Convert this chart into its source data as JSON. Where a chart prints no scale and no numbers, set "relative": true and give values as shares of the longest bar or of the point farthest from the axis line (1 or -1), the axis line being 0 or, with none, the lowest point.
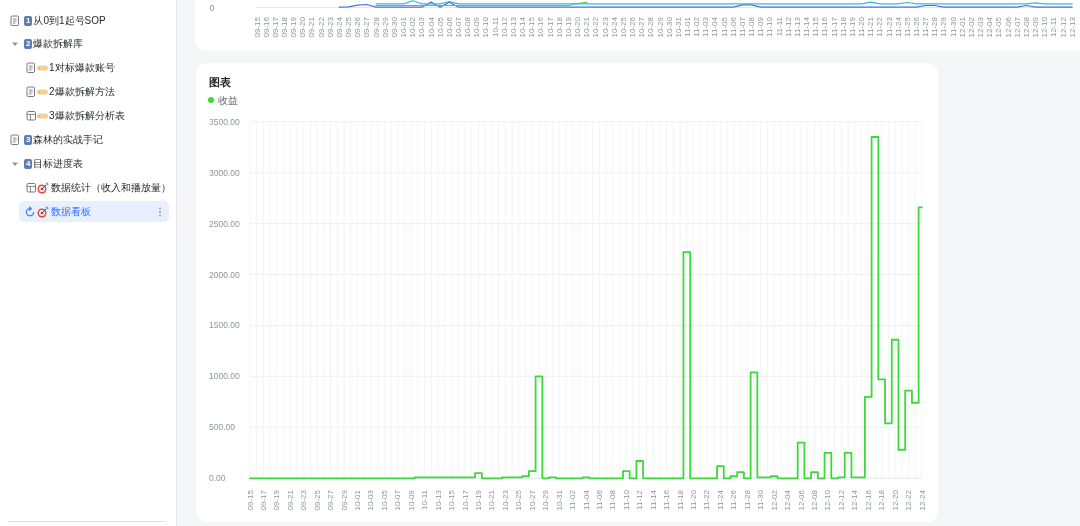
{
  "chart_data": [
    {
      "type": "other",
      "annotations": [
        "1从0到1起号SOP",
        "2爆款拆解库",
        "1对标爆款账号",
        "2爆款拆解方法",
        "3爆款拆解分析表",
        "3森林的实战手记",
        "4目标进度表",
        "数据统计（收入和播放量）",
        "数据看板"
      ]
    },
    {
      "type": "line",
      "relative": true,
      "annotations": [
        "0"
      ],
      "categories": [
        "09-15",
        "09-16",
        "09-17",
        "09-18",
        "09-19",
        "09-20",
        "09-21",
        "09-22",
        "09-23",
        "09-24",
        "09-25",
        "09-26",
        "09-27",
        "09-28",
        "09-29",
        "09-30",
        "10-01",
        "10-02",
        "10-03",
        "10-04",
        "10-05",
        "10-06",
        "10-07",
        "10-08",
        "10-09",
        "10-10",
        "10-11",
        "10-12",
        "10-13",
        "10-14",
        "10-15",
        "10-16",
        "10-17",
        "10-18",
        "10-19",
        "10-20",
        "10-21",
        "10-22",
        "10-23",
        "10-24",
        "10-25",
        "10-26",
        "10-27",
        "10-28",
        "10-29",
        "10-30",
        "10-31",
        "11-01",
        "11-02",
        "11-03",
        "11-04",
        "11-05",
        "11-06",
        "11-07",
        "11-08",
        "11-09",
        "11-10",
        "11-11",
        "11-12",
        "11-13",
        "11-14",
        "11-15",
        "11-16",
        "11-17",
        "11-18",
        "11-19",
        "11-20",
        "11-21",
        "11-22",
        "11-23",
        "11-24",
        "11-25",
        "11-26",
        "11-27",
        "11-28",
        "11-29",
        "11-30",
        "12-01",
        "12-02",
        "12-03",
        "12-04",
        "12-05",
        "12-06",
        "12-07",
        "12-08",
        "12-09",
        "12-10",
        "12-11",
        "12-12",
        "12-13"
      ],
      "series": [
        {
          "color": "#4a6cf7",
          "values": [
            null,
            null,
            null,
            null,
            null,
            null,
            null,
            null,
            null,
            0.05,
            0.1,
            0.35,
            0.45,
            0.05,
            0.05,
            0.05,
            0.05,
            0.05,
            0.05,
            0.8,
            0.05,
            0.8,
            0.05,
            0.05,
            0.05,
            0.05,
            0.05,
            0.05,
            0.05,
            0.05,
            0.05,
            0.05,
            0.05,
            0.05,
            0.05,
            0.05,
            0.05,
            0.05,
            0.05,
            0.05,
            0.05,
            0.05,
            0.05,
            0.05,
            0.05,
            0.05,
            0.05,
            0.05,
            0.05,
            0.05,
            0.05,
            0.05,
            0.05,
            0.4,
            0.4,
            0.05,
            0.05,
            0.05,
            0.05,
            0.05,
            0.05,
            0.05,
            0.05,
            0.05,
            0.05,
            0.05,
            0.05,
            0.05,
            0.05,
            0.05,
            0.05,
            0.05,
            0.05,
            0.3,
            0.3,
            0.05,
            0.05,
            0.05,
            0.05,
            0.05,
            0.05,
            0.05,
            0.05,
            0.05,
            0.3,
            0.05,
            0.05,
            0.05,
            0.05,
            0.05
          ]
        },
        {
          "color": "#62c73c",
          "values": [
            null,
            null,
            null,
            null,
            null,
            null,
            null,
            null,
            null,
            null,
            null,
            null,
            null,
            0.3,
            0.3,
            0.3,
            0.3,
            0.3,
            0.3,
            0.3,
            0.3,
            0.3,
            0.3,
            0.3,
            0.3,
            0.3,
            0.3,
            0.3,
            0.3,
            0.3,
            0.3,
            0.3,
            0.3,
            0.3,
            0.3,
            0.6,
            0.75,
            null,
            null,
            null,
            null,
            null,
            null,
            null,
            null,
            null,
            null,
            null,
            null,
            null,
            null,
            null,
            null,
            null,
            null,
            null,
            null,
            null,
            null,
            null,
            null,
            null,
            null,
            null,
            null,
            null,
            null,
            null,
            null,
            null,
            null,
            null,
            null,
            null,
            null,
            null,
            null,
            null,
            null,
            null,
            null,
            null,
            null,
            null,
            null,
            null,
            null,
            null,
            null,
            null
          ]
        },
        {
          "color": "#2bc3cf",
          "values": [
            null,
            null,
            null,
            null,
            null,
            null,
            null,
            null,
            null,
            null,
            null,
            null,
            null,
            0.55,
            0.55,
            0.55,
            0.55,
            1,
            0.55,
            0.55,
            0.55,
            0.9,
            0.55,
            0.55,
            0.55,
            0.55,
            0.55,
            0.55,
            0.55,
            0.55,
            0.55,
            0.55,
            0.55,
            0.55,
            0.55,
            0.55,
            0.55,
            0.55,
            0.55,
            0.55,
            0.55,
            0.55,
            0.55,
            0.55,
            0.55,
            0.55,
            0.55,
            0.55,
            0.55,
            0.55,
            0.55,
            0.55,
            0.55,
            0.55,
            0.55,
            0.55,
            0.55,
            0.55,
            0.55,
            0.55,
            0.55,
            0.55,
            0.55,
            0.55,
            0.55,
            0.55,
            0.55,
            0.8,
            0.55,
            0.55,
            0.55,
            0.75,
            0.55,
            0.55,
            0.55,
            0.55,
            0.55,
            0.55,
            0.55,
            0.55,
            0.55,
            0.55,
            0.55,
            0.55,
            0.55,
            0.7,
            0.55,
            0.55,
            0.55,
            0.55
          ]
        }
      ]
    },
    {
      "type": "step",
      "title": "图表",
      "legend": "top left",
      "grid": true,
      "ylim": [
        0,
        3500
      ],
      "yticks": [
        {
          "value": 0,
          "label": "0.00"
        },
        {
          "value": 500,
          "label": "500.00"
        },
        {
          "value": 1000,
          "label": "1000.00"
        },
        {
          "value": 1500,
          "label": "1500.00"
        },
        {
          "value": 2000,
          "label": "2000.00"
        },
        {
          "value": 2500,
          "label": "2500.00"
        },
        {
          "value": 3000,
          "label": "3000.00"
        },
        {
          "value": 3500,
          "label": "3500.00"
        }
      ],
      "categories": [
        "09-15",
        null,
        "09-17",
        null,
        "09-19",
        null,
        "09-21",
        null,
        "09-23",
        null,
        "09-25",
        null,
        "09-27",
        null,
        "09-29",
        null,
        "10-01",
        null,
        "10-03",
        null,
        "10-05",
        null,
        "10-07",
        null,
        "10-09",
        null,
        "10-11",
        null,
        "10-13",
        null,
        "10-15",
        null,
        "10-17",
        null,
        "10-19",
        null,
        "10-21",
        null,
        "10-23",
        null,
        "10-25",
        null,
        "10-27",
        null,
        "10-29",
        null,
        "10-31",
        null,
        "11-02",
        null,
        "11-04",
        null,
        "11-06",
        null,
        "11-08",
        null,
        "11-10",
        null,
        "11-12",
        null,
        "11-14",
        null,
        "11-16",
        null,
        "11-18",
        null,
        "11-20",
        null,
        "11-22",
        null,
        "11-24",
        null,
        "11-26",
        null,
        "11-28",
        null,
        "11-30",
        null,
        "12-02",
        null,
        "12-04",
        null,
        "12-06",
        null,
        "12-08",
        null,
        "12-10",
        null,
        "12-12",
        null,
        "12-14",
        null,
        "12-16",
        null,
        "12-18",
        null,
        "12-20",
        null,
        "12-22",
        null,
        "12-24"
      ],
      "series": [
        {
          "name": "收益",
          "color": "#3dd83a",
          "values": [
            0,
            0,
            0,
            0,
            0,
            0,
            0,
            0,
            0,
            0,
            0,
            0,
            0,
            0,
            0,
            0,
            0,
            0,
            0,
            0,
            0,
            0,
            0,
            0,
            0,
            10,
            10,
            10,
            10,
            10,
            10,
            10,
            10,
            10,
            50,
            0,
            0,
            0,
            10,
            10,
            10,
            20,
            70,
            1000,
            0,
            10,
            0,
            0,
            0,
            0,
            10,
            0,
            0,
            0,
            0,
            0,
            70,
            0,
            170,
            0,
            0,
            0,
            0,
            0,
            0,
            2220,
            0,
            0,
            0,
            0,
            120,
            0,
            20,
            60,
            0,
            1040,
            10,
            10,
            20,
            0,
            0,
            0,
            350,
            0,
            60,
            0,
            250,
            0,
            10,
            250,
            10,
            10,
            800,
            3350,
            970,
            540,
            1360,
            280,
            860,
            740,
            2660
          ]
        }
      ]
    }
  ]
}
